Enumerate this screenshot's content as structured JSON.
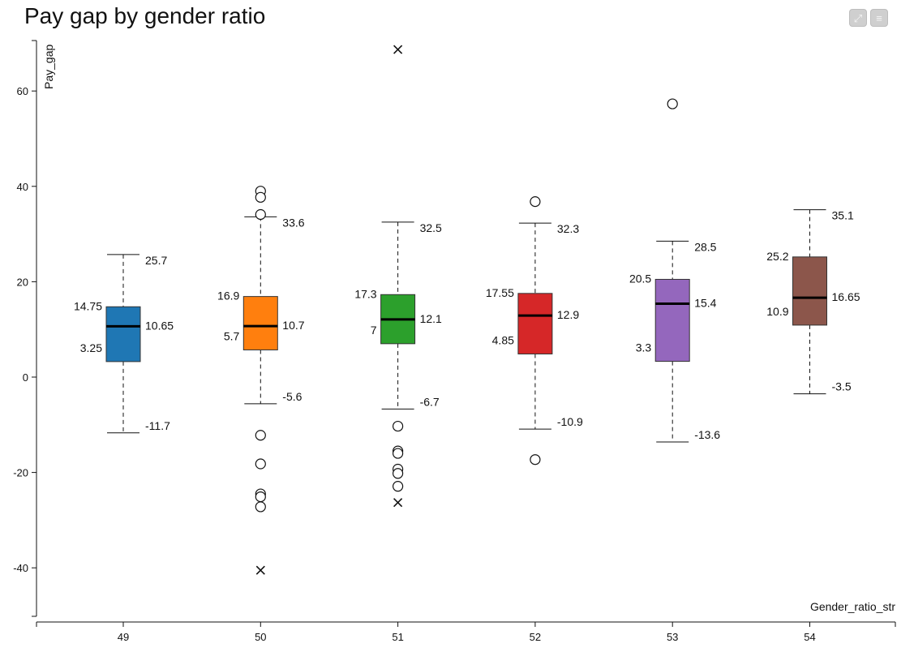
{
  "chart_data": {
    "type": "box",
    "title": "Pay gap by gender ratio",
    "xlabel": "Gender_ratio_str",
    "ylabel": "Pay_gap",
    "ylim": [
      -50,
      70
    ],
    "yticks": [
      -40,
      -20,
      0,
      20,
      40,
      60
    ],
    "categories": [
      "49",
      "50",
      "51",
      "52",
      "53",
      "54"
    ],
    "boxes": [
      {
        "category": "49",
        "color": "#1f77b4",
        "q1": 3.25,
        "median": 10.65,
        "q3": 14.75,
        "whisker_low": -11.7,
        "whisker_high": 25.7,
        "q1_label": "3.25",
        "median_label": "10.65",
        "q3_label": "14.75",
        "low_label": "-11.7",
        "high_label": "25.7",
        "outliers": [],
        "extremes": []
      },
      {
        "category": "50",
        "color": "#ff7f0e",
        "q1": 5.7,
        "median": 10.7,
        "q3": 16.9,
        "whisker_low": -5.6,
        "whisker_high": 33.6,
        "q1_label": "5.7",
        "median_label": "10.7",
        "q3_label": "16.9",
        "low_label": "-5.6",
        "high_label": "33.6",
        "outliers": [
          39,
          37.7,
          34.1,
          -12.2,
          -18.2,
          -24.5,
          -25.1,
          -27.2
        ],
        "extremes": [
          -40.5
        ]
      },
      {
        "category": "51",
        "color": "#2ca02c",
        "q1": 7,
        "median": 12.1,
        "q3": 17.3,
        "whisker_low": -6.7,
        "whisker_high": 32.5,
        "q1_label": "7",
        "median_label": "12.1",
        "q3_label": "17.3",
        "low_label": "-6.7",
        "high_label": "32.5",
        "outliers": [
          -10.3,
          -15.5,
          -16,
          -19.3,
          -20.2,
          -22.9
        ],
        "extremes": [
          68.7,
          -26.3
        ]
      },
      {
        "category": "52",
        "color": "#d62728",
        "q1": 4.85,
        "median": 12.9,
        "q3": 17.55,
        "whisker_low": -10.9,
        "whisker_high": 32.3,
        "q1_label": "4.85",
        "median_label": "12.9",
        "q3_label": "17.55",
        "low_label": "-10.9",
        "high_label": "32.3",
        "outliers": [
          36.8,
          -17.3
        ],
        "extremes": []
      },
      {
        "category": "53",
        "color": "#9467bd",
        "q1": 3.3,
        "median": 15.4,
        "q3": 20.5,
        "whisker_low": -13.6,
        "whisker_high": 28.5,
        "q1_label": "3.3",
        "median_label": "15.4",
        "q3_label": "20.5",
        "low_label": "-13.6",
        "high_label": "28.5",
        "outliers": [
          57.3
        ],
        "extremes": []
      },
      {
        "category": "54",
        "color": "#8c564b",
        "q1": 10.9,
        "median": 16.65,
        "q3": 25.2,
        "whisker_low": -3.5,
        "whisker_high": 35.1,
        "q1_label": "10.9",
        "median_label": "16.65",
        "q3_label": "25.2",
        "low_label": "-3.5",
        "high_label": "35.1",
        "outliers": [],
        "extremes": []
      }
    ]
  },
  "toolbar": {
    "expand_icon": "⤢",
    "menu_icon": "≡"
  }
}
